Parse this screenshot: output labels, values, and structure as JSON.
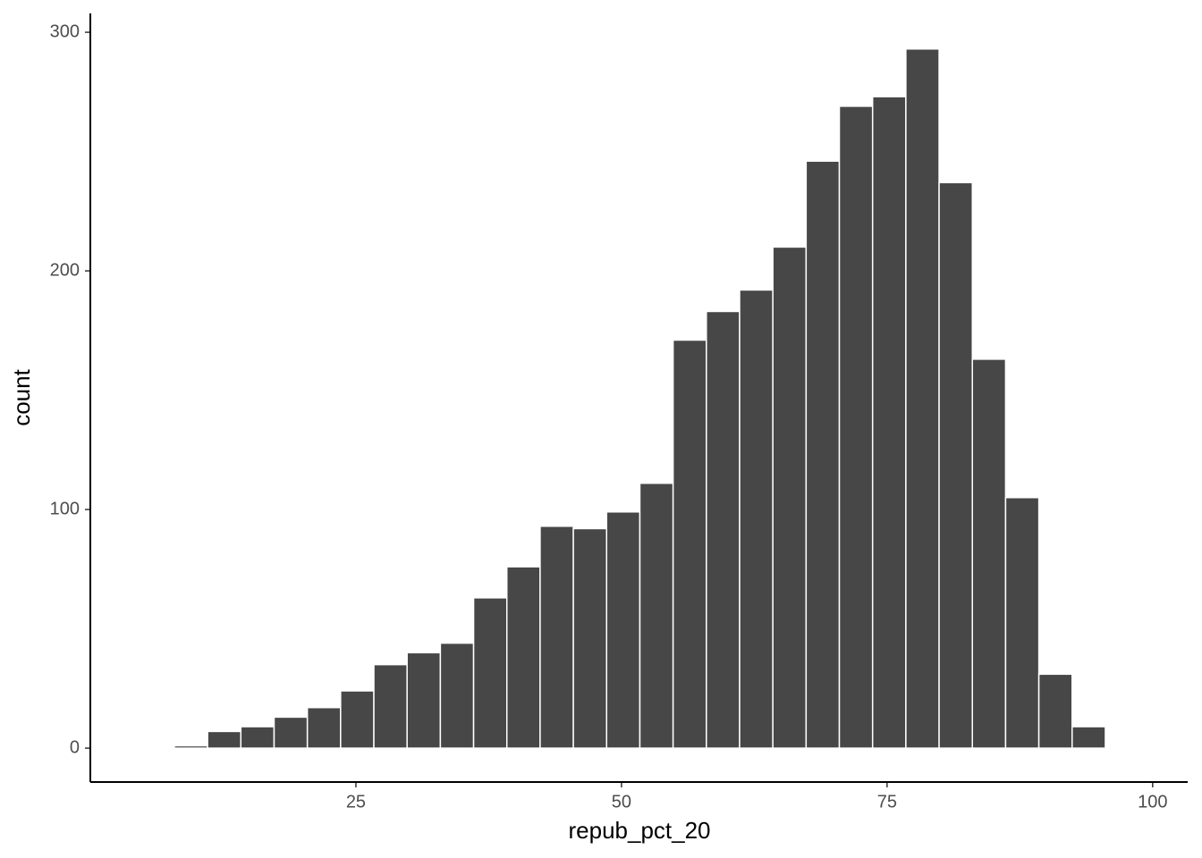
{
  "chart_data": {
    "type": "histogram",
    "x_label": "repub_pct_20",
    "y_label": "count",
    "bins": [
      7.91,
      11.04,
      14.17,
      17.3,
      20.43,
      23.56,
      26.69,
      29.82,
      32.95,
      36.08,
      39.21,
      42.34,
      45.47,
      48.6,
      51.73,
      54.86,
      57.99,
      61.12,
      64.25,
      67.38,
      70.51,
      73.64,
      76.77,
      79.9,
      83.03,
      86.16,
      89.29,
      92.42,
      95.55
    ],
    "values": [
      1,
      7,
      9,
      13,
      17,
      24,
      35,
      40,
      44,
      63,
      76,
      93,
      92,
      99,
      111,
      171,
      183,
      192,
      210,
      246,
      269,
      273,
      293,
      237,
      163,
      105,
      31,
      9
    ],
    "color": "#474747",
    "xlim": [
      0,
      103.3
    ],
    "xticks": [
      25,
      50,
      75,
      100
    ],
    "ylim": [
      -14.2,
      307.9
    ],
    "yticks": [
      0,
      100,
      200,
      300
    ],
    "grid": false
  }
}
